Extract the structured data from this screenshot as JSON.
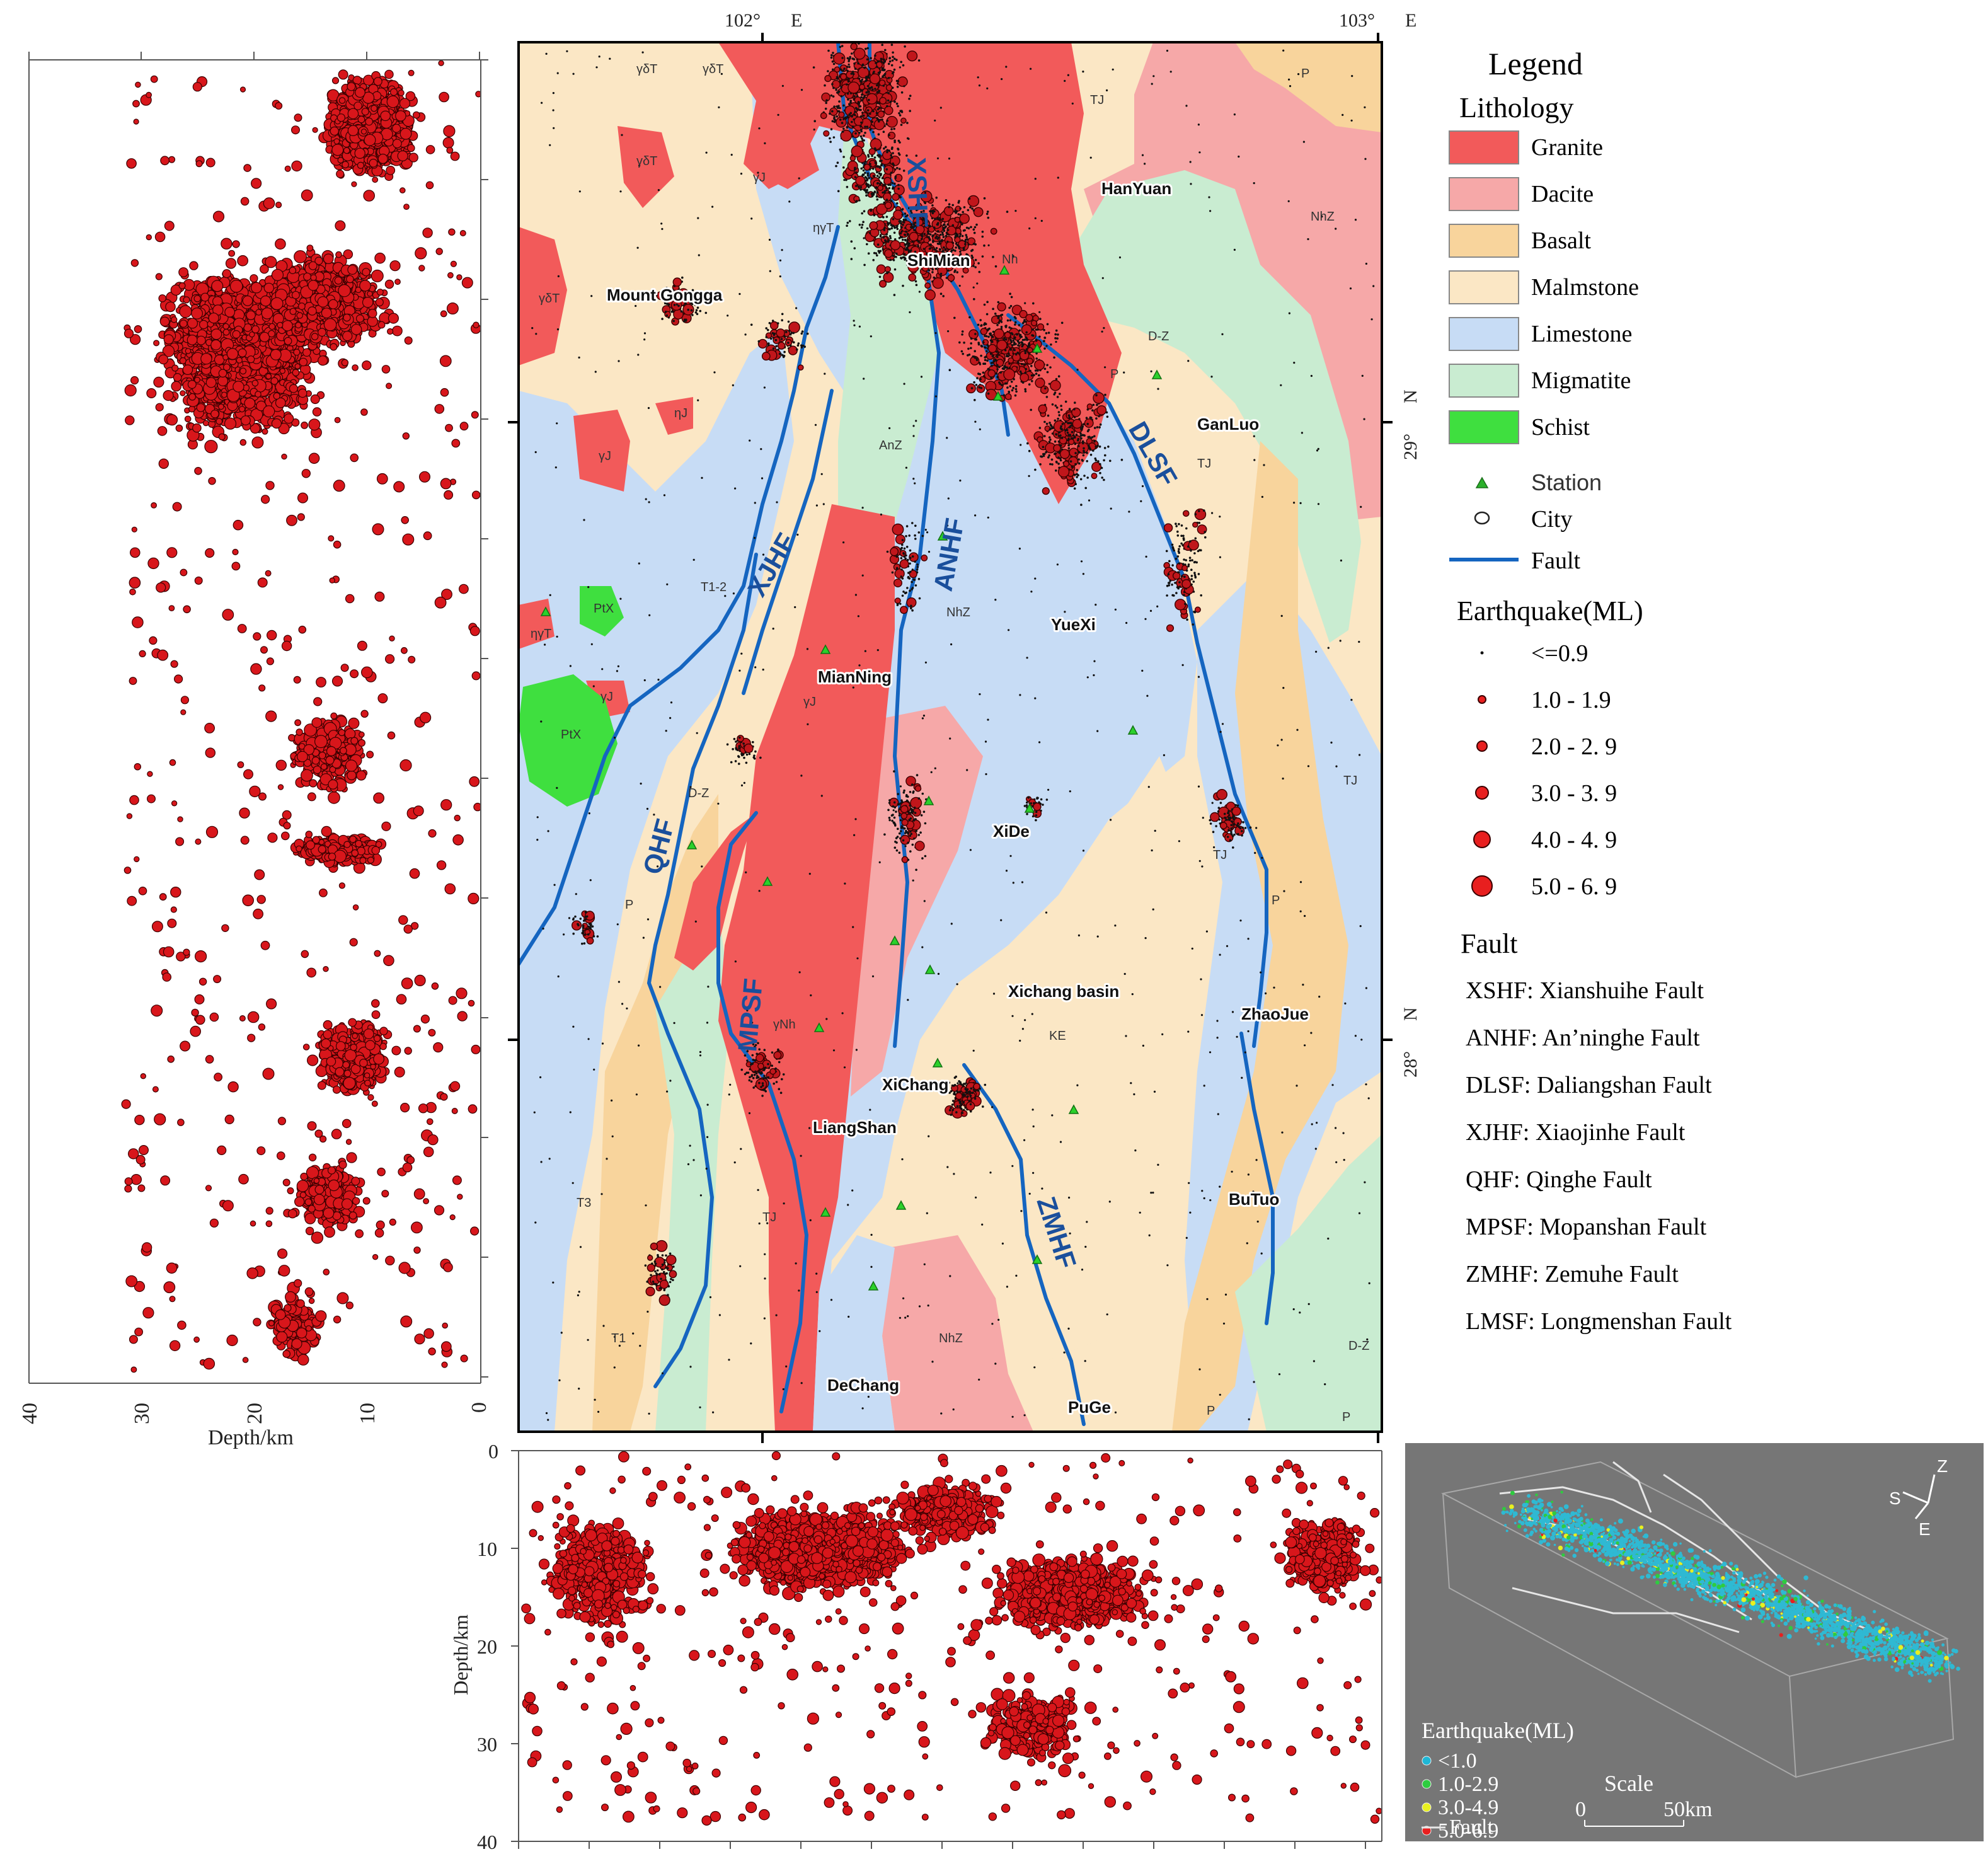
{
  "map": {
    "coord_labels": {
      "lon_102": "102°",
      "lon_103": "103°",
      "lon_dir": "E",
      "lat_29": "29°",
      "lat_28": "28°",
      "lat_dir": "N"
    },
    "cities": [
      "Mount Gongga",
      "HanYuan",
      "ShiMian",
      "GanLuo",
      "YueXi",
      "MianNing",
      "XiDe",
      "Xichang basin",
      "ZhaoJue",
      "XiChang",
      "LiangShan",
      "BuTuo",
      "DeChang",
      "PuGe"
    ],
    "faults": [
      "XSHF",
      "ANHF",
      "DLSF",
      "XJHF",
      "QHF",
      "MPSF",
      "ZMHF"
    ],
    "unit_labels": [
      "γδT",
      "γδT",
      "TJ",
      "P",
      "γδT",
      "γJ",
      "ηγT",
      "NhZ",
      "Nh",
      "γδT",
      "D-Z",
      "P",
      "ηJ",
      "γJ",
      "T1-2",
      "TJ",
      "PtX",
      "ηγT",
      "γJ",
      "PtX",
      "NhZ",
      "D-Z",
      "P",
      "TJ",
      "P",
      "KE",
      "TJ",
      "T3",
      "TJ",
      "T1",
      "NhZ",
      "D-Z",
      "P",
      "P",
      "γNh",
      "γJ",
      "AnZ"
    ]
  },
  "legend": {
    "title": "Legend",
    "lithology_title": "Lithology",
    "lithology": [
      {
        "label": "Granite",
        "color": "#f25a5a"
      },
      {
        "label": "Dacite",
        "color": "#f6a8a8"
      },
      {
        "label": "Basalt",
        "color": "#f8d49c"
      },
      {
        "label": "Malmstone",
        "color": "#fbe7c5"
      },
      {
        "label": "Limestone",
        "color": "#c7dcf5"
      },
      {
        "label": "Migmatite",
        "color": "#c9ecd1"
      },
      {
        "label": "Schist",
        "color": "#3fdf3f"
      }
    ],
    "symbols": [
      {
        "label": "Station",
        "icon": "green-triangle-icon"
      },
      {
        "label": "City",
        "icon": "circle-icon"
      },
      {
        "label": "Fault",
        "icon": "blue-line-icon"
      }
    ],
    "earthquake_title": "Earthquake(ML)",
    "earthquake": [
      "<=0.9",
      "1.0 - 1.9",
      "2.0 - 2. 9",
      "3.0 - 3. 9",
      "4.0 - 4. 9",
      "5.0 - 6. 9"
    ],
    "fault_title": "Fault",
    "fault_defs": [
      "XSHF: Xianshuihe Fault",
      "ANHF: An’ninghe Fault",
      "DLSF: Daliangshan Fault",
      "XJHF: Xiaojinhe Fault",
      "QHF: Qinghe Fault",
      "MPSF: Mopanshan Fault",
      "ZMHF: Zemuhe Fault",
      "LMSF: Longmenshan Fault"
    ]
  },
  "left_profile": {
    "xlabel": "Depth/km",
    "ticks": [
      "40",
      "30",
      "20",
      "10",
      "0"
    ]
  },
  "bottom_profile": {
    "ylabel": "Depth/km",
    "ticks": [
      "0",
      "10",
      "20",
      "30",
      "40"
    ]
  },
  "inset3d": {
    "axis_labels": [
      "Z",
      "S",
      "E"
    ],
    "legend_title": "Earthquake(ML)",
    "legend_items": [
      {
        "label": "<1.0",
        "color": "#1fb7d6"
      },
      {
        "label": "1.0-2.9",
        "color": "#2ecc40"
      },
      {
        "label": "3.0-4.9",
        "color": "#e8f020"
      },
      {
        "label": "5.0-6.9",
        "color": "#e81f1f"
      }
    ],
    "fault_label": "Fault",
    "scale_title": "Scale",
    "scale_start": "0",
    "scale_end": "50km"
  }
}
